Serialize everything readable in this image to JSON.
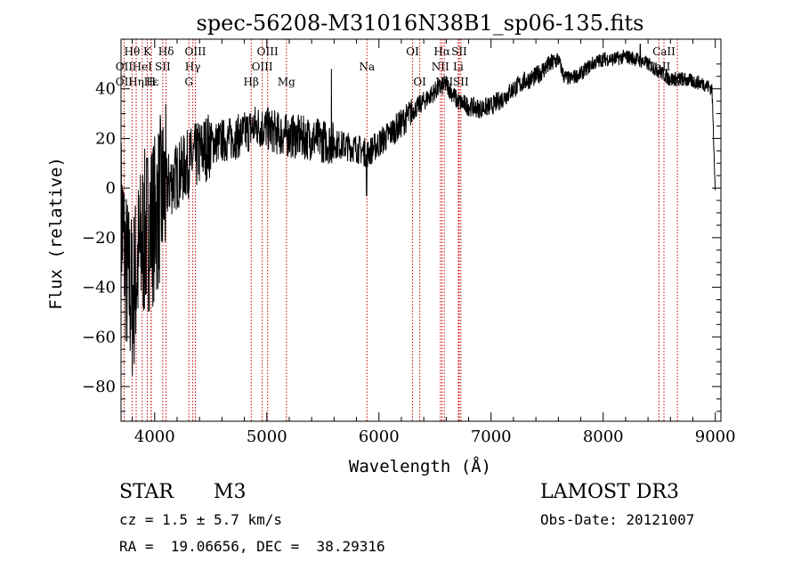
{
  "chart_data": {
    "type": "line",
    "title": "spec-56208-M31016N38B1_sp06-135.fits",
    "xlabel": "Wavelength (Å)",
    "ylabel": "Flux (relative)",
    "xlim": [
      3700,
      9050
    ],
    "ylim": [
      -94,
      60
    ],
    "xticks": [
      4000,
      5000,
      6000,
      7000,
      8000,
      9000
    ],
    "yticks": [
      -80,
      -60,
      -40,
      -20,
      0,
      20,
      40
    ],
    "line_color": "#000000",
    "marker_color": "#cc0000",
    "spectrum_knots": [
      [
        3700,
        -10
      ],
      [
        3750,
        -35
      ],
      [
        3800,
        -45
      ],
      [
        3850,
        -30
      ],
      [
        3900,
        -20
      ],
      [
        3950,
        -15
      ],
      [
        4000,
        -12
      ],
      [
        4050,
        -5
      ],
      [
        4100,
        0
      ],
      [
        4200,
        5
      ],
      [
        4300,
        10
      ],
      [
        4400,
        14
      ],
      [
        4500,
        18
      ],
      [
        4600,
        19
      ],
      [
        4700,
        20
      ],
      [
        4800,
        22
      ],
      [
        4900,
        25
      ],
      [
        5000,
        24
      ],
      [
        5100,
        22
      ],
      [
        5200,
        21
      ],
      [
        5400,
        20
      ],
      [
        5600,
        18
      ],
      [
        5800,
        16
      ],
      [
        5900,
        14
      ],
      [
        6000,
        18
      ],
      [
        6100,
        22
      ],
      [
        6200,
        26
      ],
      [
        6300,
        31
      ],
      [
        6400,
        35
      ],
      [
        6500,
        39
      ],
      [
        6600,
        42
      ],
      [
        6700,
        35
      ],
      [
        6800,
        33
      ],
      [
        6900,
        32
      ],
      [
        7000,
        33
      ],
      [
        7100,
        36
      ],
      [
        7200,
        40
      ],
      [
        7300,
        43
      ],
      [
        7400,
        45
      ],
      [
        7500,
        49
      ],
      [
        7600,
        52
      ],
      [
        7650,
        45
      ],
      [
        7700,
        44
      ],
      [
        7800,
        46
      ],
      [
        7900,
        50
      ],
      [
        8000,
        52
      ],
      [
        8100,
        52
      ],
      [
        8200,
        53
      ],
      [
        8300,
        52
      ],
      [
        8400,
        50
      ],
      [
        8500,
        47
      ],
      [
        8600,
        44
      ],
      [
        8700,
        44
      ],
      [
        8800,
        43
      ],
      [
        8900,
        42
      ],
      [
        8970,
        40
      ],
      [
        9000,
        0
      ]
    ],
    "spikes": [
      {
        "x": 5577,
        "y": 48
      },
      {
        "x": 5890,
        "y": -3
      },
      {
        "x": 8330,
        "y": 58
      }
    ],
    "lines": [
      {
        "label": "Hθ",
        "x": 3798,
        "row": 0
      },
      {
        "label": "K",
        "x": 3934,
        "row": 0
      },
      {
        "label": "Hδ",
        "x": 4102,
        "row": 0
      },
      {
        "label": "OIII",
        "x": 4363,
        "row": 0
      },
      {
        "label": "OIII",
        "x": 5007,
        "row": 0
      },
      {
        "label": "OI",
        "x": 6300,
        "row": 0
      },
      {
        "label": "Hα",
        "x": 6563,
        "row": 0
      },
      {
        "label": "SII",
        "x": 6716,
        "row": 0
      },
      {
        "label": "CaII",
        "x": 8542,
        "row": 0
      },
      {
        "label": "OII",
        "x": 3727,
        "row": 1
      },
      {
        "label": "HeI",
        "x": 3889,
        "row": 1
      },
      {
        "label": "SII",
        "x": 4072,
        "row": 1
      },
      {
        "label": "Hγ",
        "x": 4340,
        "row": 1
      },
      {
        "label": "OIII",
        "x": 4959,
        "row": 1
      },
      {
        "label": "Na",
        "x": 5893,
        "row": 1
      },
      {
        "label": "NII",
        "x": 6548,
        "row": 1
      },
      {
        "label": "Li",
        "x": 6708,
        "row": 1
      },
      {
        "label": "CaII",
        "x": 8498,
        "row": 1
      },
      {
        "label": "OII",
        "x": 3727,
        "row": 2
      },
      {
        "label": "Hη",
        "x": 3835,
        "row": 2
      },
      {
        "label": "Hε",
        "x": 3970,
        "row": 2
      },
      {
        "label": "H",
        "x": 3968,
        "row": 2
      },
      {
        "label": "G",
        "x": 4305,
        "row": 2
      },
      {
        "label": "Hβ",
        "x": 4861,
        "row": 2
      },
      {
        "label": "Mg",
        "x": 5175,
        "row": 2
      },
      {
        "label": "OI",
        "x": 6364,
        "row": 2
      },
      {
        "label": "NII",
        "x": 6583,
        "row": 2
      },
      {
        "label": "SII",
        "x": 6731,
        "row": 2
      },
      {
        "label": "CaII",
        "x": 8662,
        "row": 2
      }
    ]
  },
  "info": {
    "object_class": "STAR",
    "subclass": "M3",
    "survey": "LAMOST DR3",
    "cz": "cz = 1.5 ± 5.7 km/s",
    "obs_date": "Obs-Date: 20121007",
    "coords": "RA =  19.06656, DEC =  38.29316"
  }
}
